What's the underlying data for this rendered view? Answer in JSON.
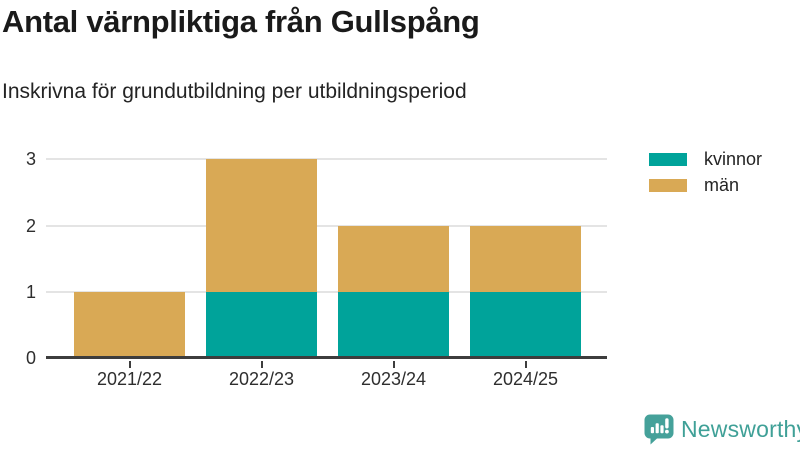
{
  "chart_data": {
    "type": "bar",
    "stacked": true,
    "title": "Antal värnpliktiga från Gullspång",
    "subtitle": "Inskrivna för grundutbildning per utbildningsperiod",
    "categories": [
      "2021/22",
      "2022/23",
      "2023/24",
      "2024/25"
    ],
    "series": [
      {
        "name": "kvinnor",
        "color": "#00a39a",
        "values": [
          0,
          1,
          1,
          1
        ]
      },
      {
        "name": "män",
        "color": "#d9a955",
        "values": [
          1,
          2,
          1,
          1
        ]
      }
    ],
    "totals": [
      1,
      3,
      2,
      2
    ],
    "xlabel": "",
    "ylabel": "",
    "yticks": [
      0,
      1,
      2,
      3
    ],
    "ylim": [
      0,
      3.15
    ],
    "grid": "horizontal",
    "legend_position": "top-right",
    "colors": {
      "gridline": "#e4e4e4",
      "axis_line": "#3d3d3d",
      "title_text": "#1a1a1a",
      "tick_text": "#2e2e2e"
    }
  },
  "branding": {
    "name": "Newsworthy",
    "color": "#3fa097",
    "icon": "newsworthy-speech-bubble-barchart-icon"
  }
}
